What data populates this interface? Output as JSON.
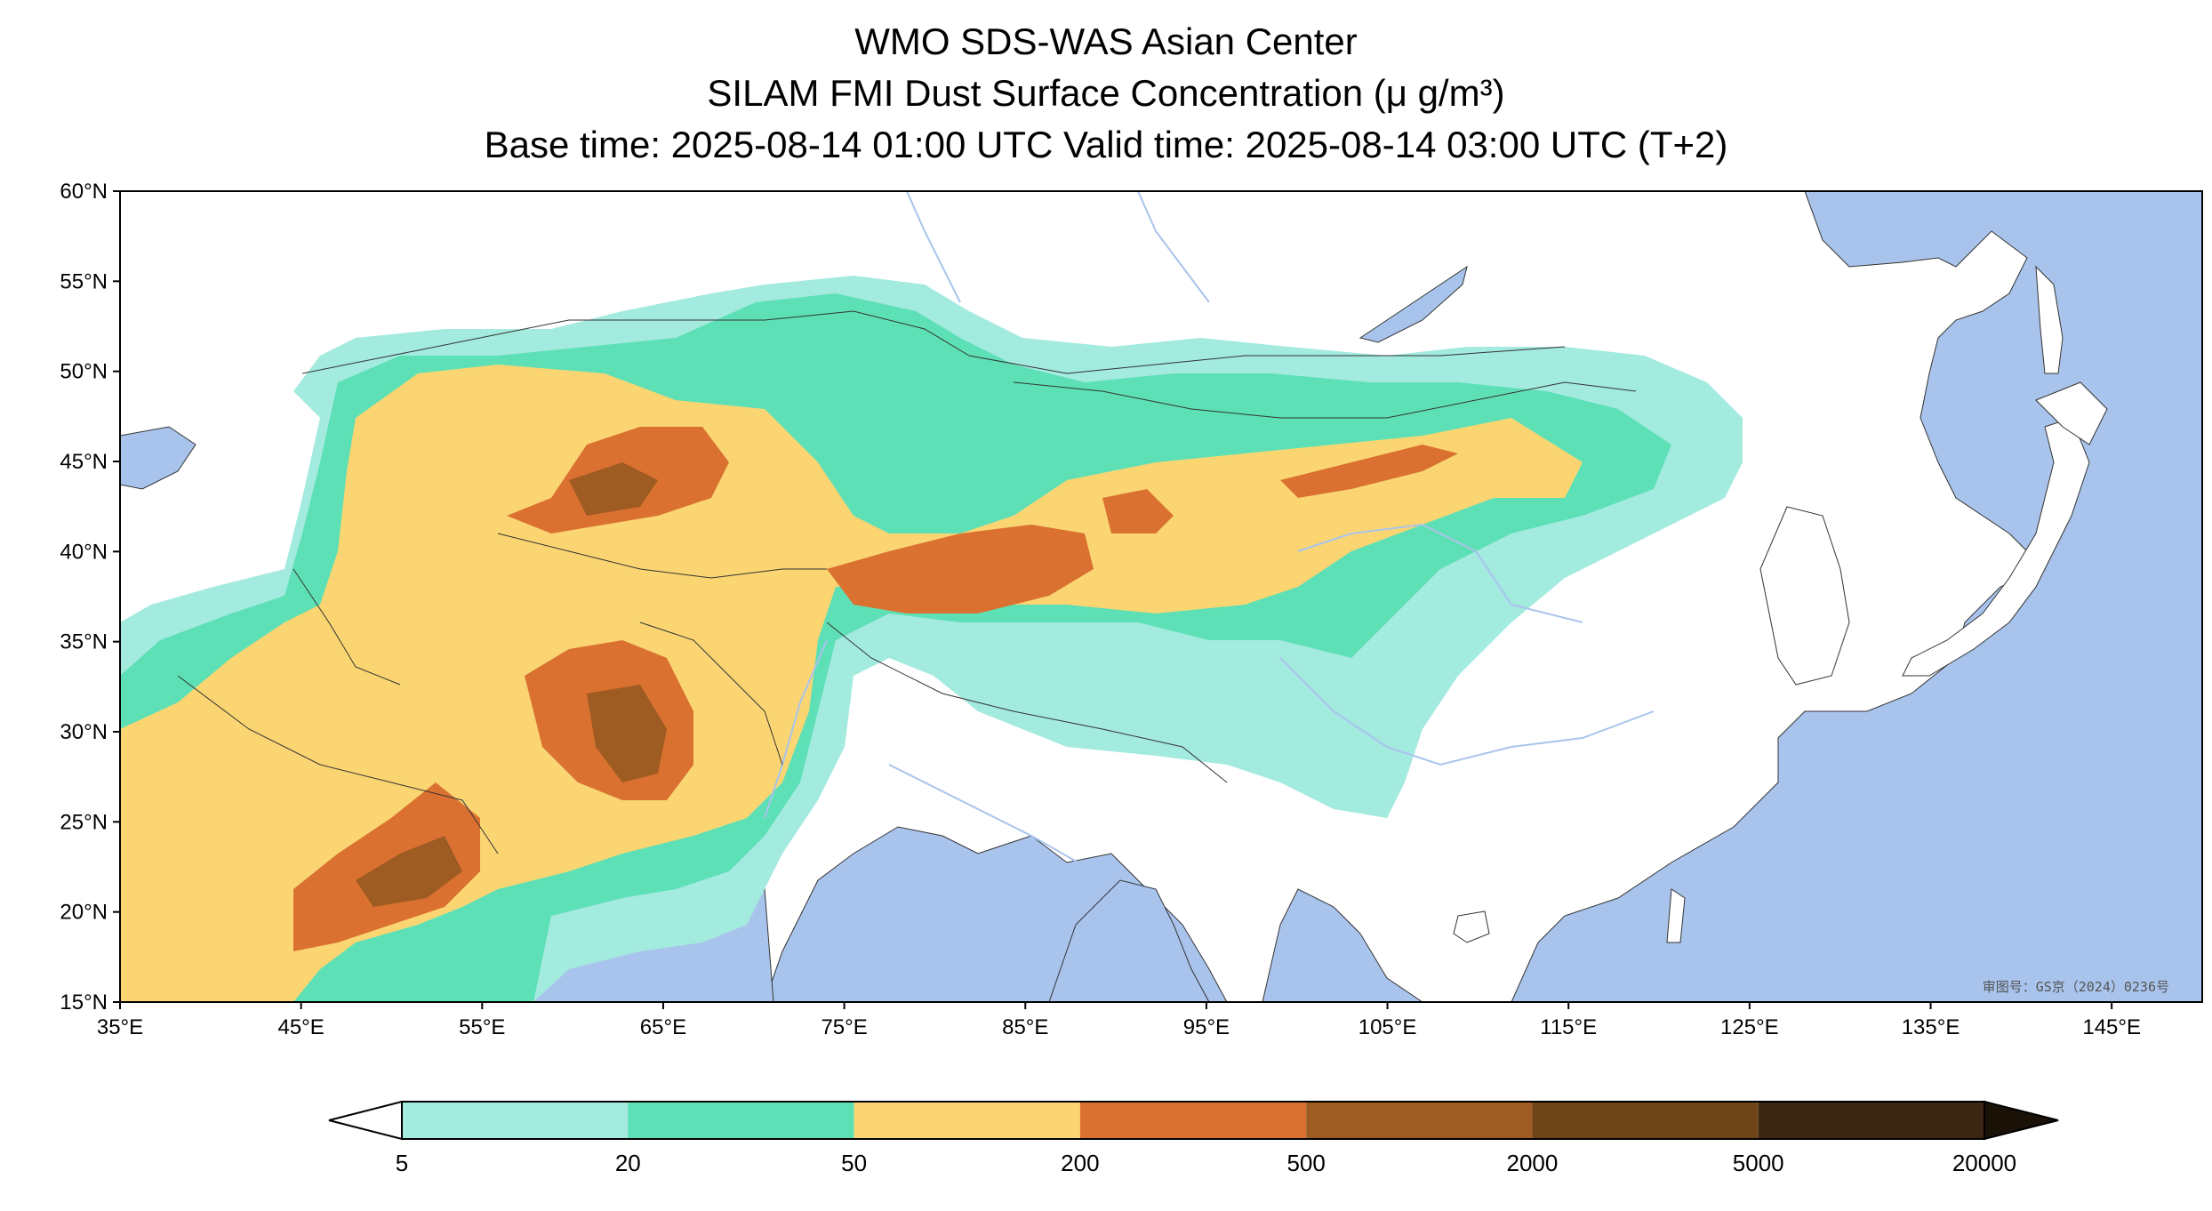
{
  "titles": {
    "line1": "WMO SDS-WAS Asian Center",
    "line2": "SILAM FMI Dust Surface Concentration (μ g/m³)",
    "line3": "Base time: 2025-08-14 01:00 UTC Valid time: 2025-08-14 03:00 UTC (T+2)"
  },
  "map": {
    "lon_range": [
      35,
      150
    ],
    "lat_range": [
      15,
      60
    ],
    "lon_ticks": [
      "35°E",
      "45°E",
      "55°E",
      "65°E",
      "75°E",
      "85°E",
      "95°E",
      "105°E",
      "115°E",
      "125°E",
      "135°E",
      "145°E"
    ],
    "lat_ticks": [
      "60°N",
      "55°N",
      "50°N",
      "45°N",
      "40°N",
      "35°N",
      "30°N",
      "25°N",
      "20°N",
      "15°N"
    ],
    "colors": {
      "ocean": "#a9c4ec",
      "land": "#ffffff",
      "river": "#a9c4ec",
      "border": "#333333"
    },
    "watermark": "审图号：GS京（2024）0236号"
  },
  "colorbar": {
    "labels": [
      "5",
      "20",
      "50",
      "200",
      "500",
      "2000",
      "5000",
      "20000"
    ],
    "colors": [
      "#a3eadf",
      "#5ee0b6",
      "#fad572",
      "#da7131",
      "#9e5b22",
      "#6e4419",
      "#3b2613",
      "#1b1207"
    ]
  }
}
